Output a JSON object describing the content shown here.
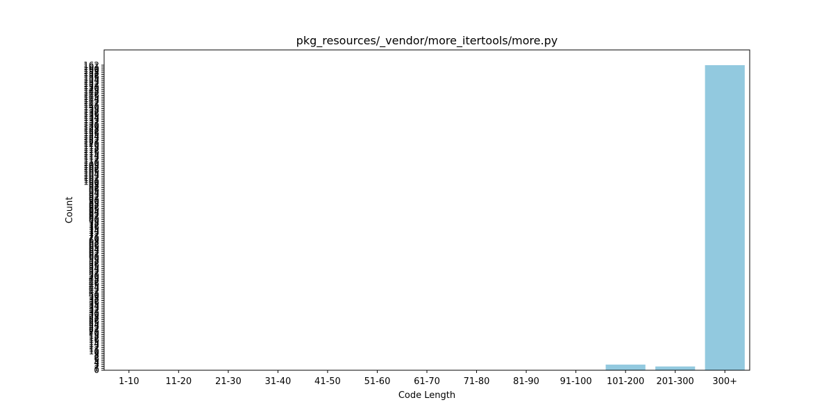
{
  "chart_data": {
    "type": "bar",
    "title": "pkg_resources/_vendor/more_itertools/more.py",
    "xlabel": "Code Length",
    "ylabel": "Count",
    "categories": [
      "1-10",
      "11-20",
      "21-30",
      "31-40",
      "41-50",
      "51-60",
      "61-70",
      "71-80",
      "81-90",
      "91-100",
      "101-200",
      "201-300",
      "300+"
    ],
    "values": [
      0,
      0,
      0,
      0,
      0,
      0,
      0,
      0,
      0,
      0,
      3,
      2,
      162
    ],
    "ylim": [
      0,
      162
    ],
    "yticks": [
      0,
      1,
      2,
      3,
      4,
      5,
      6,
      7,
      8,
      9,
      10,
      11,
      12,
      13,
      14,
      15,
      16,
      17,
      18,
      19,
      20,
      21,
      22,
      23,
      24,
      25,
      26,
      27,
      28,
      29,
      30,
      31,
      32,
      33,
      34,
      35,
      36,
      37,
      38,
      39,
      40,
      41,
      42,
      43,
      44,
      45,
      46,
      47,
      48,
      49,
      50,
      51,
      52,
      53,
      54,
      55,
      56,
      57,
      58,
      59,
      60,
      61,
      62,
      63,
      64,
      65,
      66,
      67,
      68,
      69,
      70,
      71,
      72,
      73,
      74,
      75,
      76,
      77,
      78,
      79,
      80,
      81,
      82,
      83,
      84,
      85,
      86,
      87,
      88,
      89,
      90,
      91,
      92,
      93,
      94,
      95,
      96,
      97,
      98,
      99,
      100,
      101,
      102,
      103,
      104,
      105,
      106,
      107,
      108,
      109,
      110,
      111,
      112,
      113,
      114,
      115,
      116,
      117,
      118,
      119,
      120,
      121,
      122,
      123,
      124,
      125,
      126,
      127,
      128,
      129,
      130,
      131,
      132,
      133,
      134,
      135,
      136,
      137,
      138,
      139,
      140,
      141,
      142,
      143,
      144,
      145,
      146,
      147,
      148,
      149,
      150,
      151,
      152,
      153,
      154,
      155,
      156,
      157,
      158,
      159,
      160,
      161,
      162
    ],
    "grid": false,
    "bar_color": "#92c9df"
  }
}
